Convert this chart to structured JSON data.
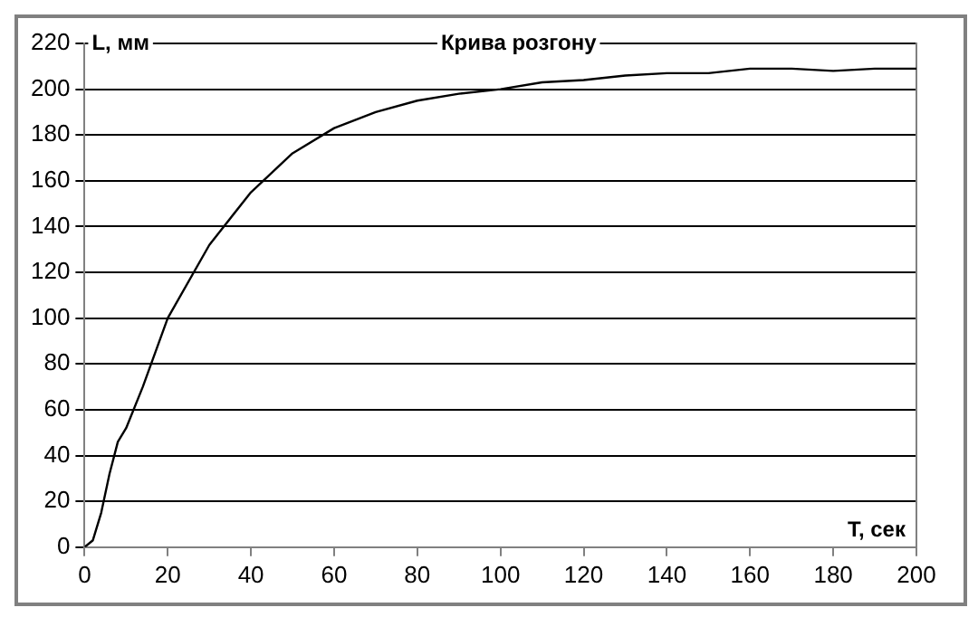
{
  "chart_data": {
    "type": "line",
    "title": "Крива розгону",
    "xlabel": "T, сек",
    "ylabel": "L, мм",
    "x": [
      0,
      2,
      4,
      6,
      8,
      10,
      14,
      20,
      30,
      40,
      50,
      60,
      70,
      80,
      90,
      100,
      110,
      120,
      130,
      140,
      150,
      160,
      170,
      180,
      190,
      200
    ],
    "series": [
      {
        "color": "#000000",
        "values": [
          0,
          3,
          15,
          32,
          46,
          52,
          70,
          100,
          132,
          155,
          172,
          183,
          190,
          195,
          198,
          200,
          203,
          204,
          206,
          207,
          207,
          209,
          209,
          208,
          209,
          209
        ]
      }
    ],
    "xlim": [
      0,
      200
    ],
    "xticks": [
      0,
      20,
      40,
      60,
      80,
      100,
      120,
      140,
      160,
      180,
      200
    ],
    "ylim": [
      0,
      220
    ],
    "yticks": [
      0,
      20,
      40,
      60,
      80,
      100,
      120,
      140,
      160,
      180,
      200,
      220
    ],
    "grid": "y",
    "legend": false,
    "marker": "none",
    "line_style": "solid"
  }
}
